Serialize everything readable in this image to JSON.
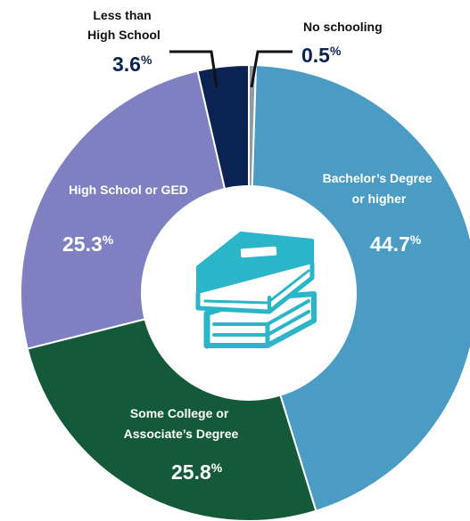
{
  "chart_data": {
    "type": "pie",
    "variant": "donut",
    "slices": [
      {
        "key": "no_schooling",
        "label": "No schooling",
        "value": 0.5,
        "value_text": "0.5",
        "unit": "%",
        "color": "#8f9aa6"
      },
      {
        "key": "bachelors",
        "label": "Bachelor’s Degree or higher",
        "value": 44.7,
        "value_text": "44.7",
        "unit": "%",
        "color": "#4a9cc4"
      },
      {
        "key": "some_college",
        "label": "Some College or Associate’s Degree",
        "value": 25.8,
        "value_text": "25.8",
        "unit": "%",
        "color": "#145a3a"
      },
      {
        "key": "high_school",
        "label": "High School or GED",
        "value": 25.3,
        "value_text": "25.3",
        "unit": "%",
        "color": "#7f7fc1"
      },
      {
        "key": "less_than_hs",
        "label": "Less than High School",
        "value": 3.6,
        "value_text": "3.6",
        "unit": "%",
        "color": "#0b2352"
      }
    ],
    "center_icon": "books-icon",
    "colors": {
      "inside_text": "#ffffff",
      "outside_label": "#111111",
      "outside_value": "#0b2352",
      "icon": "#2ab5c9",
      "center": "#ffffff"
    }
  }
}
